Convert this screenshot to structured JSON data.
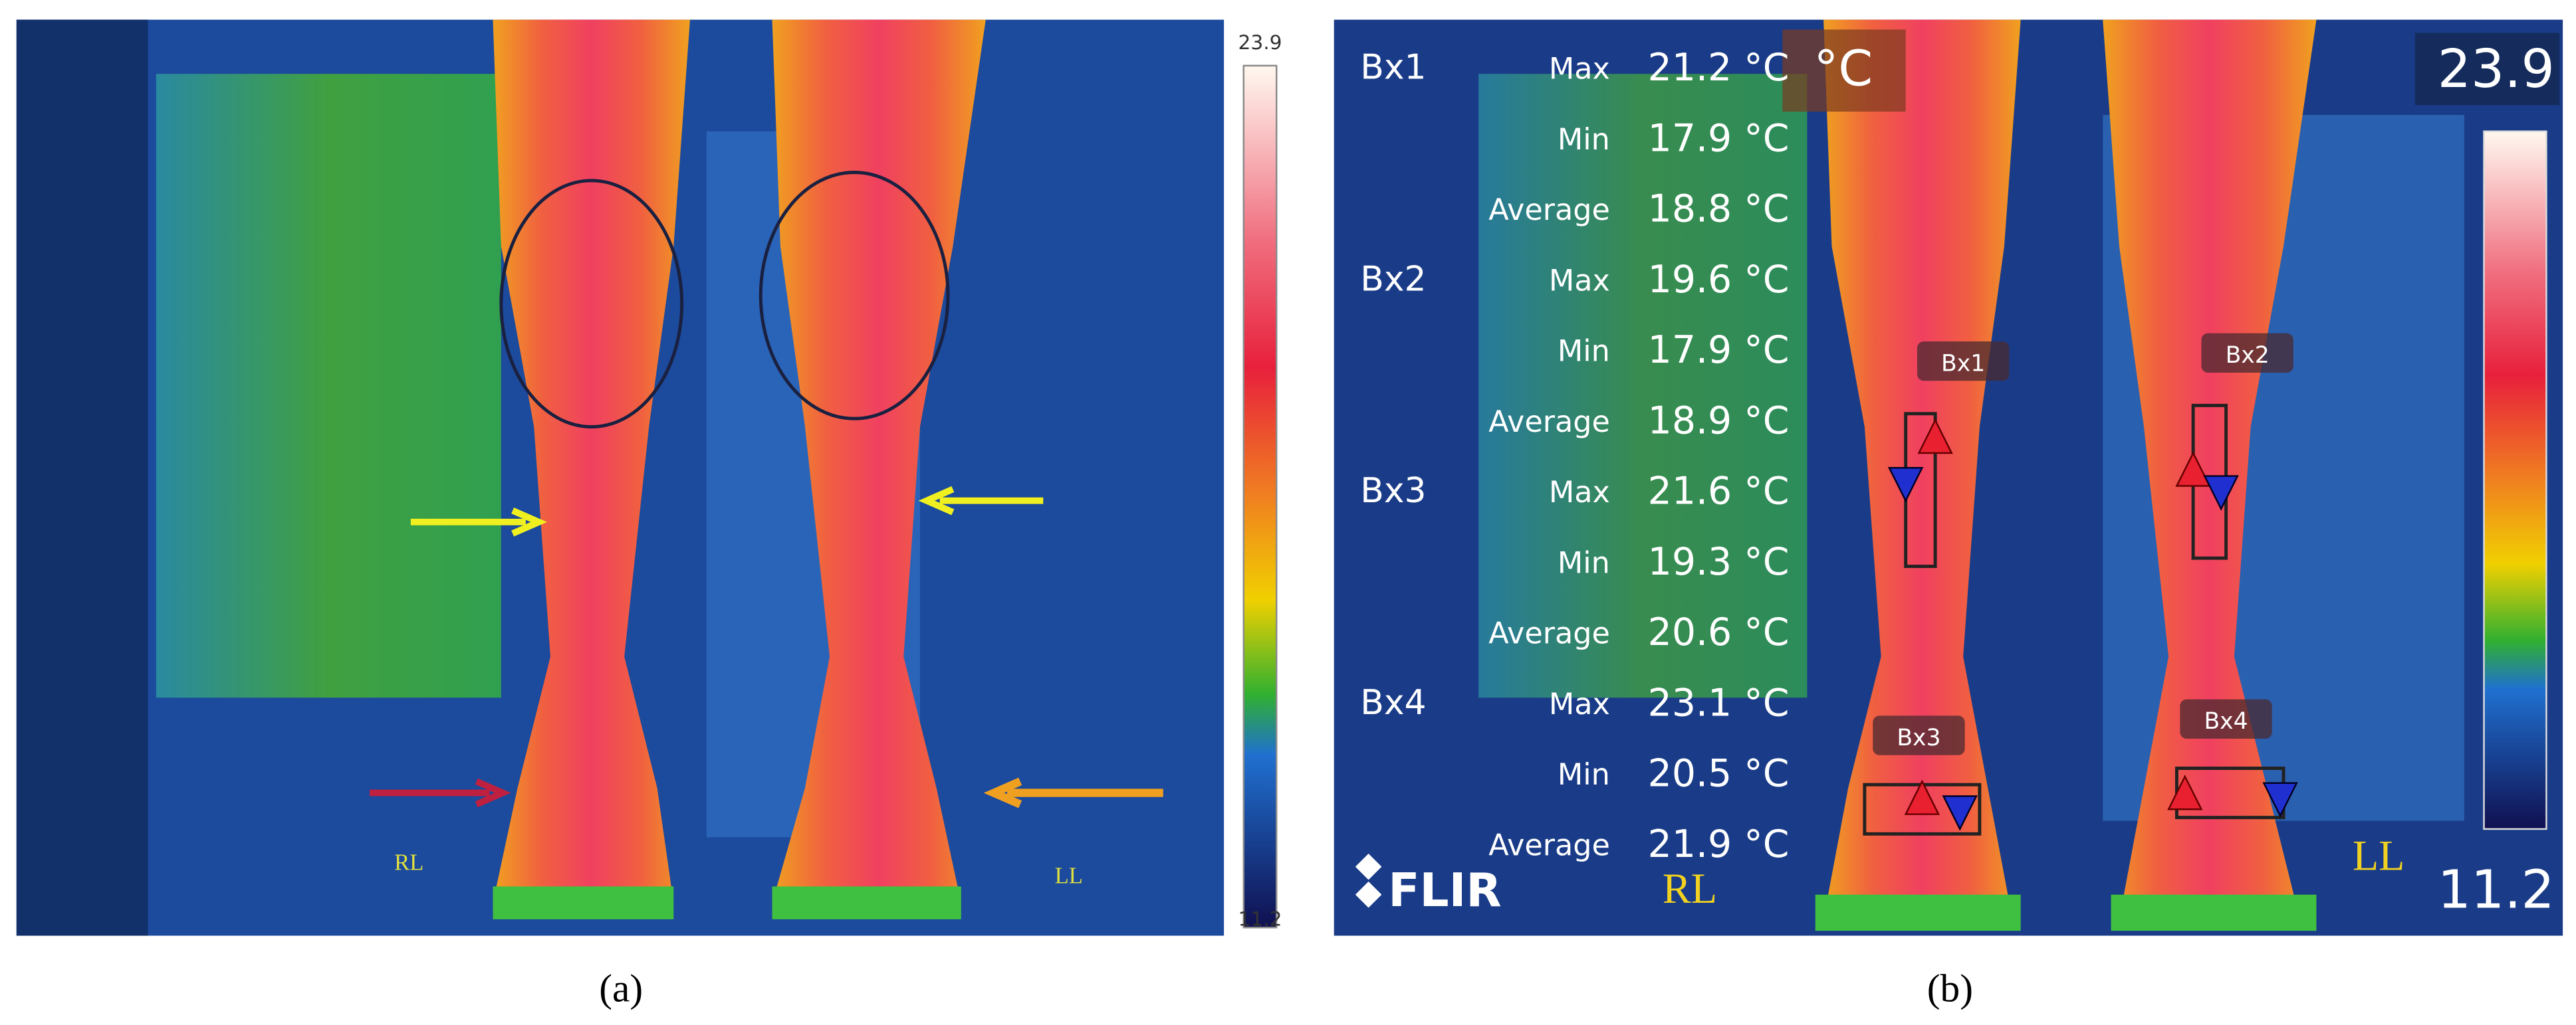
{
  "panel_a": {
    "scale": {
      "max": "23.9",
      "min": "11.2"
    },
    "labels": [
      "RL",
      "LL"
    ],
    "caption": "(a)"
  },
  "panel_b": {
    "unit": "°C",
    "measurements": [
      {
        "box": "Bx1",
        "rows": [
          {
            "stat": "Max",
            "value": "21.2 °C"
          },
          {
            "stat": "Min",
            "value": "17.9 °C"
          },
          {
            "stat": "Average",
            "value": "18.8 °C"
          }
        ]
      },
      {
        "box": "Bx2",
        "rows": [
          {
            "stat": "Max",
            "value": "19.6 °C"
          },
          {
            "stat": "Min",
            "value": "17.9 °C"
          },
          {
            "stat": "Average",
            "value": "18.9 °C"
          }
        ]
      },
      {
        "box": "Bx3",
        "rows": [
          {
            "stat": "Max",
            "value": "21.6 °C"
          },
          {
            "stat": "Min",
            "value": "19.3 °C"
          },
          {
            "stat": "Average",
            "value": "20.6 °C"
          }
        ]
      },
      {
        "box": "Bx4",
        "rows": [
          {
            "stat": "Max",
            "value": "23.1 °C"
          },
          {
            "stat": "Min",
            "value": "20.5 °C"
          },
          {
            "stat": "Average",
            "value": "21.9 °C"
          }
        ]
      }
    ],
    "box_labels": [
      "Bx1",
      "Bx2",
      "Bx3",
      "Bx4"
    ],
    "logo": "FLIR",
    "labels": [
      "RL",
      "LL"
    ],
    "scale": {
      "max": "23.9",
      "min": "11.2"
    },
    "caption": "(b)"
  }
}
